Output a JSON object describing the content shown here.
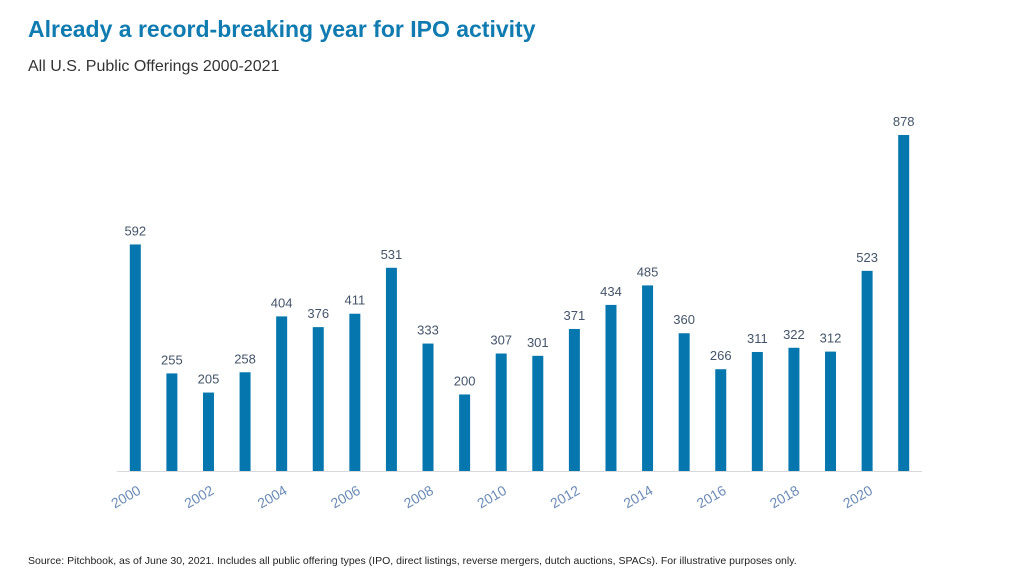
{
  "title": "Already a record-breaking year for IPO activity",
  "subtitle": "All U.S. Public Offerings 2000-2021",
  "source": "Source: Pitchbook, as of June 30, 2021. Includes all public offering types (IPO, direct listings, reverse mergers, dutch auctions, SPACs). For illustrative purposes only.",
  "colors": {
    "bar": "#0677ae",
    "axis": "#d9d9d9"
  },
  "chart_data": {
    "type": "bar",
    "title": "Already a record-breaking year for IPO activity",
    "subtitle": "All U.S. Public Offerings 2000-2021",
    "xlabel": "",
    "ylabel": "",
    "categories": [
      "2000",
      "2001",
      "2002",
      "2003",
      "2004",
      "2005",
      "2006",
      "2007",
      "2008",
      "2009",
      "2010",
      "2011",
      "2012",
      "2013",
      "2014",
      "2015",
      "2016",
      "2017",
      "2018",
      "2019",
      "2020",
      "2021"
    ],
    "tick_labels": [
      "2000",
      "",
      "2002",
      "",
      "2004",
      "",
      "2006",
      "",
      "2008",
      "",
      "2010",
      "",
      "2012",
      "",
      "2014",
      "",
      "2016",
      "",
      "2018",
      "",
      "2020",
      ""
    ],
    "values": [
      592,
      255,
      205,
      258,
      404,
      376,
      411,
      531,
      333,
      200,
      307,
      301,
      371,
      434,
      485,
      360,
      266,
      311,
      322,
      312,
      523,
      878
    ],
    "data_labels": [
      "592",
      "255",
      "205",
      "258",
      "404",
      "376",
      "411",
      "531",
      "333",
      "200",
      "307",
      "301",
      "371",
      "434",
      "485",
      "360",
      "266",
      "311",
      "322",
      "312",
      "523",
      "878"
    ],
    "ylim": [
      0,
      878
    ],
    "grid": false,
    "legend": "none"
  }
}
